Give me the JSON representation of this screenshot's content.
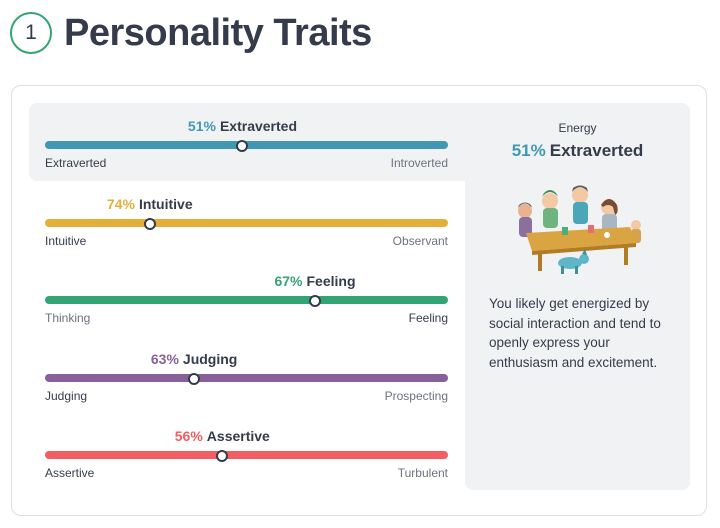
{
  "header": {
    "step": "1",
    "title": "Personality Traits"
  },
  "traits": [
    {
      "percent": "51%",
      "label": "Extraverted",
      "left_pole": "Extraverted",
      "right_pole": "Introverted",
      "value": 51,
      "color": "#4298b4",
      "dominant_side": "left",
      "active": true
    },
    {
      "percent": "74%",
      "label": "Intuitive",
      "left_pole": "Intuitive",
      "right_pole": "Observant",
      "value": 74,
      "color": "#e4ae3a",
      "dominant_side": "left",
      "active": false
    },
    {
      "percent": "67%",
      "label": "Feeling",
      "left_pole": "Thinking",
      "right_pole": "Feeling",
      "value": 67,
      "color": "#33a474",
      "dominant_side": "right",
      "active": false
    },
    {
      "percent": "63%",
      "label": "Judging",
      "left_pole": "Judging",
      "right_pole": "Prospecting",
      "value": 63,
      "color": "#88619a",
      "dominant_side": "left",
      "active": false
    },
    {
      "percent": "56%",
      "label": "Assertive",
      "left_pole": "Assertive",
      "right_pole": "Turbulent",
      "value": 56,
      "color": "#f25e62",
      "dominant_side": "left",
      "active": false
    }
  ],
  "panel": {
    "label": "Energy",
    "result_percent": "51%",
    "result_label": "Extraverted",
    "description": "You likely get energized by social interaction and tend to openly express your enthusiasm and excitement.",
    "illustration": "people-around-table-illustration"
  }
}
